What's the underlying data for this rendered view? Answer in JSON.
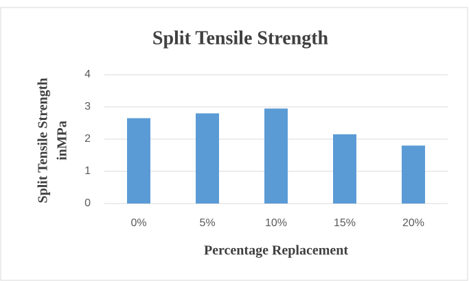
{
  "chart_data": {
    "type": "bar",
    "title": "Split Tensile Strength",
    "xlabel": "Percentage Replacement",
    "ylabel": [
      "Split Tensile Strength",
      "inMPa"
    ],
    "categories": [
      "0%",
      "5%",
      "10%",
      "15%",
      "20%"
    ],
    "values": [
      2.65,
      2.8,
      2.95,
      2.15,
      1.8
    ],
    "color": "#5b9bd5",
    "ylim": [
      0,
      4
    ],
    "yticks": [
      0,
      1,
      2,
      3,
      4
    ],
    "grid": true
  }
}
